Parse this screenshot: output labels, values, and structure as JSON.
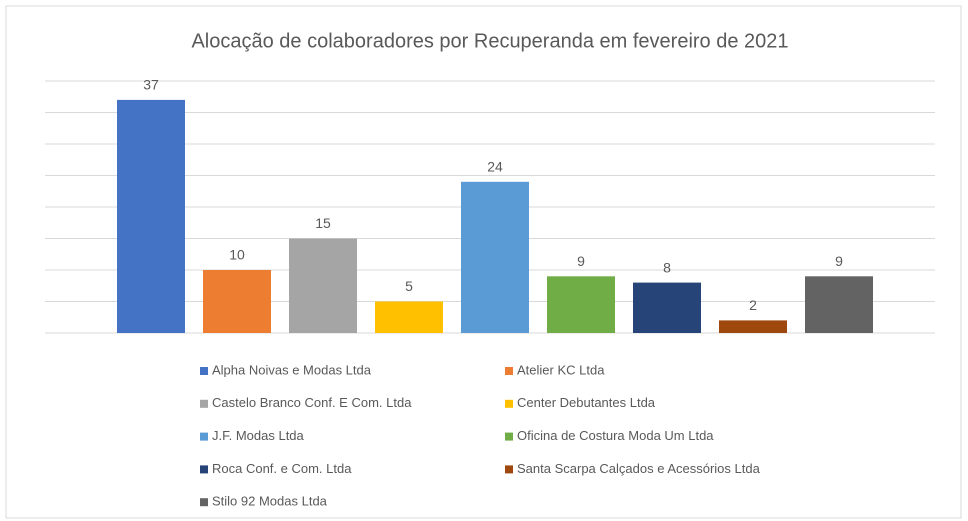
{
  "chart_data": {
    "type": "bar",
    "title": "Alocação de colaboradores por Recuperanda em fevereiro de 2021",
    "categories": [
      "Alpha Noivas e Modas Ltda",
      "Atelier KC Ltda",
      "Castelo Branco Conf. E Com. Ltda",
      "Center Debutantes Ltda",
      "J.F. Modas Ltda",
      "Oficina de Costura Moda Um Ltda",
      "Roca Conf. e Com. Ltda",
      "Santa Scarpa Calçados e Acessórios Ltda",
      "Stilo 92 Modas Ltda"
    ],
    "values": [
      37,
      10,
      15,
      5,
      24,
      9,
      8,
      2,
      9
    ],
    "colors": [
      "#4472c4",
      "#ed7d31",
      "#a5a5a5",
      "#ffc000",
      "#5b9bd5",
      "#70ad47",
      "#264478",
      "#9e480e",
      "#636363"
    ],
    "ylim": [
      0,
      40
    ],
    "yticks": [
      0,
      5,
      10,
      15,
      20,
      25,
      30,
      35,
      40
    ],
    "grid": true,
    "legend": "bottom"
  }
}
